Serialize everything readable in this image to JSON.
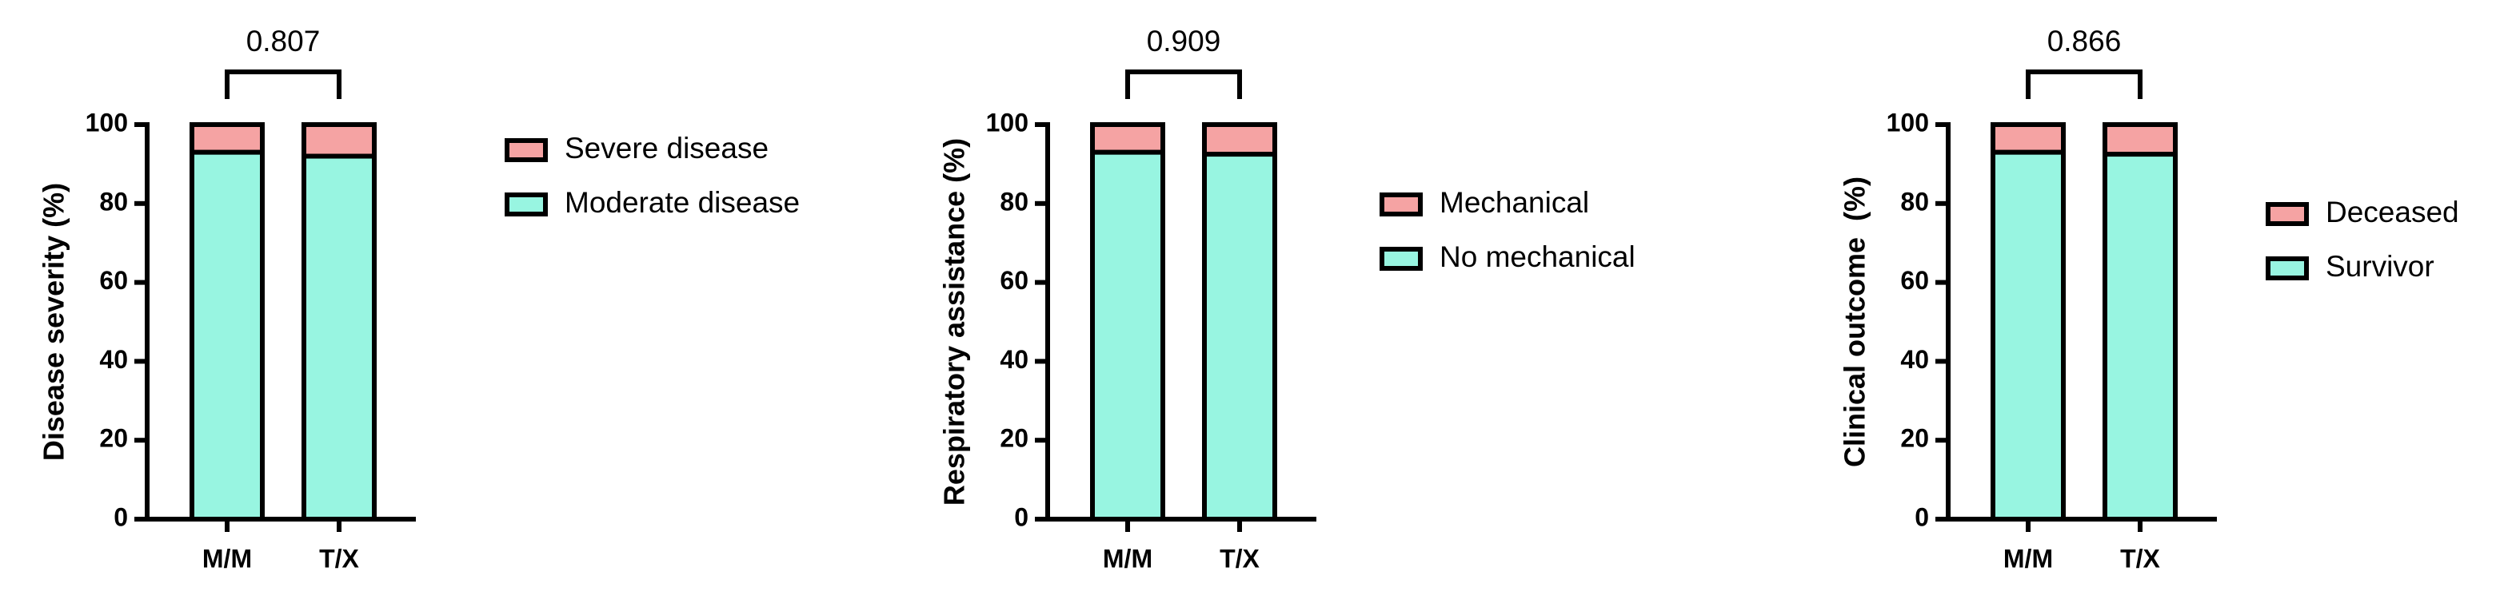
{
  "chart_data": [
    {
      "type": "bar",
      "stacked": true,
      "ylabel": "Disease severity (%)",
      "annotation": "0.807",
      "categories": [
        "M/M",
        "T/X"
      ],
      "series": [
        {
          "name": "Moderate disease",
          "color": "#98f5e1",
          "values": [
            93,
            92
          ]
        },
        {
          "name": "Severe disease",
          "color": "#f5a3a3",
          "values": [
            7,
            8
          ]
        }
      ],
      "ylim": [
        0,
        100
      ],
      "yticks": [
        0,
        20,
        40,
        60,
        80,
        100
      ]
    },
    {
      "type": "bar",
      "stacked": true,
      "ylabel": "Respiratory assistance (%)",
      "annotation": "0.909",
      "categories": [
        "M/M",
        "T/X"
      ],
      "series": [
        {
          "name": "No mechanical",
          "color": "#98f5e1",
          "values": [
            93,
            92.5
          ]
        },
        {
          "name": "Mechanical",
          "color": "#f5a3a3",
          "values": [
            7,
            7.5
          ]
        }
      ],
      "ylim": [
        0,
        100
      ],
      "yticks": [
        0,
        20,
        40,
        60,
        80,
        100
      ]
    },
    {
      "type": "bar",
      "stacked": true,
      "ylabel": "Clinical outcome  (%)",
      "annotation": "0.866",
      "categories": [
        "M/M",
        "T/X"
      ],
      "series": [
        {
          "name": "Survivor",
          "color": "#98f5e1",
          "values": [
            93,
            92.5
          ]
        },
        {
          "name": "Deceased",
          "color": "#f5a3a3",
          "values": [
            7,
            7.5
          ]
        }
      ],
      "ylim": [
        0,
        100
      ],
      "yticks": [
        0,
        20,
        40,
        60,
        80,
        100
      ]
    }
  ]
}
